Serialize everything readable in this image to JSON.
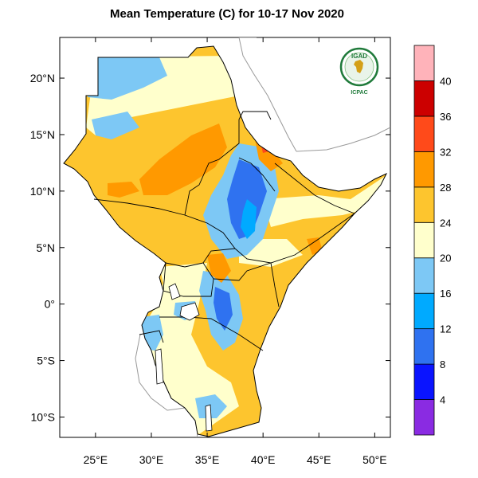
{
  "title": "Mean Temperature (C) for 10-17 Nov 2020",
  "logo": {
    "name": "IGAD",
    "subtitle": "ICPAC",
    "green": "#1f7a3a"
  },
  "lat_ticks": [
    {
      "lat": 20,
      "label": "20°N"
    },
    {
      "lat": 15,
      "label": "15°N"
    },
    {
      "lat": 10,
      "label": "10°N"
    },
    {
      "lat": 5,
      "label": "5°N"
    },
    {
      "lat": 0,
      "label": "0°"
    },
    {
      "lat": -5,
      "label": "5°S"
    },
    {
      "lat": -10,
      "label": "10°S"
    }
  ],
  "lon_ticks": [
    {
      "lon": 25,
      "label": "25°E"
    },
    {
      "lon": 30,
      "label": "30°E"
    },
    {
      "lon": 35,
      "label": "35°E"
    },
    {
      "lon": 40,
      "label": "40°E"
    },
    {
      "lon": 45,
      "label": "45°E"
    },
    {
      "lon": 50,
      "label": "50°E"
    }
  ],
  "extent": {
    "lon_min": 21.8,
    "lon_max": 51.4,
    "lat_min": -11.8,
    "lat_max": 23.6
  },
  "colorbar": {
    "bins": [
      {
        "color": "#8a2be2"
      },
      {
        "color": "#0a14ff"
      },
      {
        "color": "#2f72f0"
      },
      {
        "color": "#00aaff"
      },
      {
        "color": "#7dc8f5"
      },
      {
        "color": "#ffffcc"
      },
      {
        "color": "#fdc52e"
      },
      {
        "color": "#ff9900"
      },
      {
        "color": "#ff4a1a"
      },
      {
        "color": "#cc0000"
      },
      {
        "color": "#ffb3ba"
      }
    ],
    "labels": [
      "4",
      "8",
      "12",
      "16",
      "20",
      "24",
      "28",
      "32",
      "36",
      "40"
    ]
  }
}
